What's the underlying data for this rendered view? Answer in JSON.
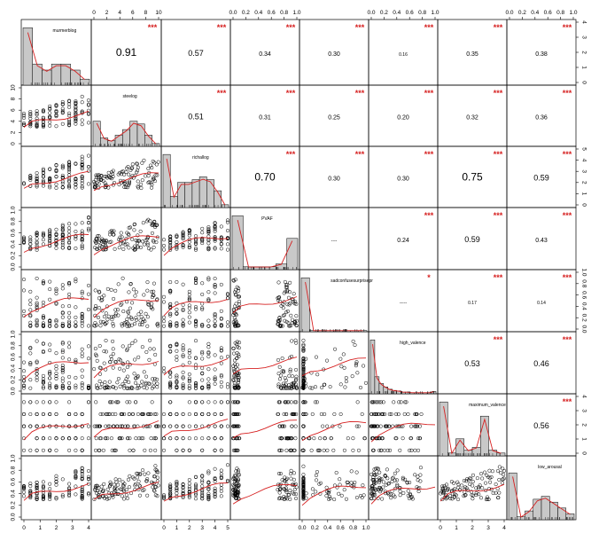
{
  "chart_data": {
    "type": "scatter-matrix",
    "variables": [
      "murmerblog",
      "steelog",
      "richallog",
      "PVAF",
      "sadconfusesurprisepr",
      "high_valence",
      "maximum_valence",
      "low_arousal"
    ],
    "correlations": [
      {
        "row": 0,
        "col": 1,
        "r": "0.91",
        "stars": "***",
        "size": "large"
      },
      {
        "row": 0,
        "col": 2,
        "r": "0.57",
        "stars": "***",
        "size": "medium"
      },
      {
        "row": 0,
        "col": 3,
        "r": "0.34",
        "stars": "***",
        "size": "small"
      },
      {
        "row": 0,
        "col": 4,
        "r": "0.30",
        "stars": "***",
        "size": "small"
      },
      {
        "row": 0,
        "col": 5,
        "r": "0.16",
        "stars": "***",
        "size": "tiny"
      },
      {
        "row": 0,
        "col": 6,
        "r": "0.35",
        "stars": "***",
        "size": "small"
      },
      {
        "row": 0,
        "col": 7,
        "r": "0.38",
        "stars": "***",
        "size": "small"
      },
      {
        "row": 1,
        "col": 2,
        "r": "0.51",
        "stars": "***",
        "size": "medium"
      },
      {
        "row": 1,
        "col": 3,
        "r": "0.31",
        "stars": "***",
        "size": "small"
      },
      {
        "row": 1,
        "col": 4,
        "r": "0.25",
        "stars": "***",
        "size": "small"
      },
      {
        "row": 1,
        "col": 5,
        "r": "0.20",
        "stars": "***",
        "size": "small"
      },
      {
        "row": 1,
        "col": 6,
        "r": "0.32",
        "stars": "***",
        "size": "small"
      },
      {
        "row": 1,
        "col": 7,
        "r": "0.36",
        "stars": "***",
        "size": "small"
      },
      {
        "row": 2,
        "col": 3,
        "r": "0.70",
        "stars": "***",
        "size": "large"
      },
      {
        "row": 2,
        "col": 4,
        "r": "0.30",
        "stars": "***",
        "size": "small"
      },
      {
        "row": 2,
        "col": 5,
        "r": "0.30",
        "stars": "***",
        "size": "small"
      },
      {
        "row": 2,
        "col": 6,
        "r": "0.75",
        "stars": "***",
        "size": "large"
      },
      {
        "row": 2,
        "col": 7,
        "r": "0.59",
        "stars": "***",
        "size": "medium"
      },
      {
        "row": 3,
        "col": 4,
        "r": "----",
        "stars": "",
        "size": "tiny"
      },
      {
        "row": 3,
        "col": 5,
        "r": "0.24",
        "stars": "***",
        "size": "small"
      },
      {
        "row": 3,
        "col": 6,
        "r": "0.59",
        "stars": "***",
        "size": "medium"
      },
      {
        "row": 3,
        "col": 7,
        "r": "0.43",
        "stars": "***",
        "size": "small"
      },
      {
        "row": 4,
        "col": 5,
        "r": "-----",
        "stars": "*",
        "size": "tiny"
      },
      {
        "row": 4,
        "col": 6,
        "r": "0.17",
        "stars": "***",
        "size": "tiny"
      },
      {
        "row": 4,
        "col": 7,
        "r": "0.14",
        "stars": "***",
        "size": "tiny"
      },
      {
        "row": 5,
        "col": 6,
        "r": "0.53",
        "stars": "***",
        "size": "medium"
      },
      {
        "row": 5,
        "col": 7,
        "r": "0.46",
        "stars": "***",
        "size": "medium"
      },
      {
        "row": 6,
        "col": 7,
        "r": "0.56",
        "stars": "***",
        "size": "medium"
      }
    ],
    "histograms": [
      [
        0.95,
        0.35,
        0.25,
        0.35,
        0.35,
        0.25,
        0.1
      ],
      [
        0.45,
        0.15,
        0.1,
        0.2,
        0.3,
        0.45,
        0.4,
        0.2,
        0.05
      ],
      [
        0.95,
        0.2,
        0.45,
        0.45,
        0.5,
        0.55,
        0.5,
        0.3,
        0.05
      ],
      [
        0.95,
        0.05,
        0.05,
        0.05,
        0.1,
        0.55
      ],
      [
        0.95,
        0.02,
        0.02,
        0.02,
        0.02,
        0.02,
        0.02,
        0.02
      ],
      [
        0.95,
        0.3,
        0.18,
        0.12,
        0.08,
        0.06,
        0.05,
        0.03,
        0.03,
        0.02,
        0.02,
        0.02,
        0.02,
        0.02,
        0.04
      ],
      [
        0.95,
        0.05,
        0.3,
        0.1,
        0.15,
        0.7,
        0.1,
        0.05
      ],
      [
        0.8,
        0.05,
        0.15,
        0.35,
        0.4,
        0.3,
        0.2,
        0.1
      ]
    ],
    "axes": {
      "top": [
        {
          "col": 1,
          "ticks": [
            "0",
            "2",
            "4",
            "6",
            "8",
            "10"
          ],
          "range": [
            0,
            10
          ]
        },
        {
          "col": 3,
          "ticks": [
            "0.0",
            "0.2",
            "0.4",
            "0.6",
            "0.8",
            "1.0"
          ],
          "range": [
            0,
            1
          ]
        },
        {
          "col": 5,
          "ticks": [
            "0.0",
            "0.2",
            "0.4",
            "0.6",
            "0.8",
            "1.0"
          ],
          "range": [
            0,
            1
          ]
        },
        {
          "col": 7,
          "ticks": [
            "0.0",
            "0.2",
            "0.4",
            "0.6",
            "0.8",
            "1.0"
          ],
          "range": [
            0,
            1
          ]
        }
      ],
      "bottom": [
        {
          "col": 0,
          "ticks": [
            "0",
            "1",
            "2",
            "3",
            "4"
          ],
          "range": [
            0,
            4
          ]
        },
        {
          "col": 2,
          "ticks": [
            "0",
            "1",
            "2",
            "3",
            "4",
            "5"
          ],
          "range": [
            0,
            5
          ]
        },
        {
          "col": 4,
          "ticks": [
            "0.0",
            "0.2",
            "0.4",
            "0.6",
            "0.8",
            "1.0"
          ],
          "range": [
            0,
            1
          ]
        },
        {
          "col": 6,
          "ticks": [
            "0",
            "1",
            "2",
            "3",
            "4"
          ],
          "range": [
            0,
            4
          ]
        }
      ],
      "left": [
        {
          "row": 1,
          "ticks": [
            "0",
            "2",
            "4",
            "6",
            "8",
            "10"
          ],
          "range": [
            0,
            10
          ]
        },
        {
          "row": 3,
          "ticks": [
            "0.0",
            "0.2",
            "0.4",
            "0.6",
            "0.8",
            "1.0"
          ],
          "range": [
            0,
            1
          ]
        },
        {
          "row": 5,
          "ticks": [
            "0.0",
            "0.2",
            "0.4",
            "0.6",
            "0.8",
            "1.0"
          ],
          "range": [
            0,
            1
          ]
        },
        {
          "row": 7,
          "ticks": [
            "0.0",
            "0.2",
            "0.4",
            "0.6",
            "0.8",
            "1.0"
          ],
          "range": [
            0,
            1
          ]
        }
      ],
      "right": [
        {
          "row": 0,
          "ticks": [
            "0",
            "1",
            "2",
            "3",
            "4"
          ],
          "range": [
            0,
            4
          ]
        },
        {
          "row": 2,
          "ticks": [
            "0",
            "1",
            "2",
            "3",
            "4",
            "5"
          ],
          "range": [
            0,
            5
          ]
        },
        {
          "row": 4,
          "ticks": [
            "0.0",
            "0.2",
            "0.4",
            "0.6",
            "0.8",
            "1.0"
          ],
          "range": [
            0,
            1
          ]
        },
        {
          "row": 6,
          "ticks": [
            "0",
            "1",
            "2",
            "3",
            "4"
          ],
          "range": [
            0,
            4
          ]
        }
      ]
    },
    "colors": {
      "fit_line": "#d62020",
      "stars": "#d62020",
      "bars": "#c8c8c8",
      "points": "#000000"
    }
  }
}
